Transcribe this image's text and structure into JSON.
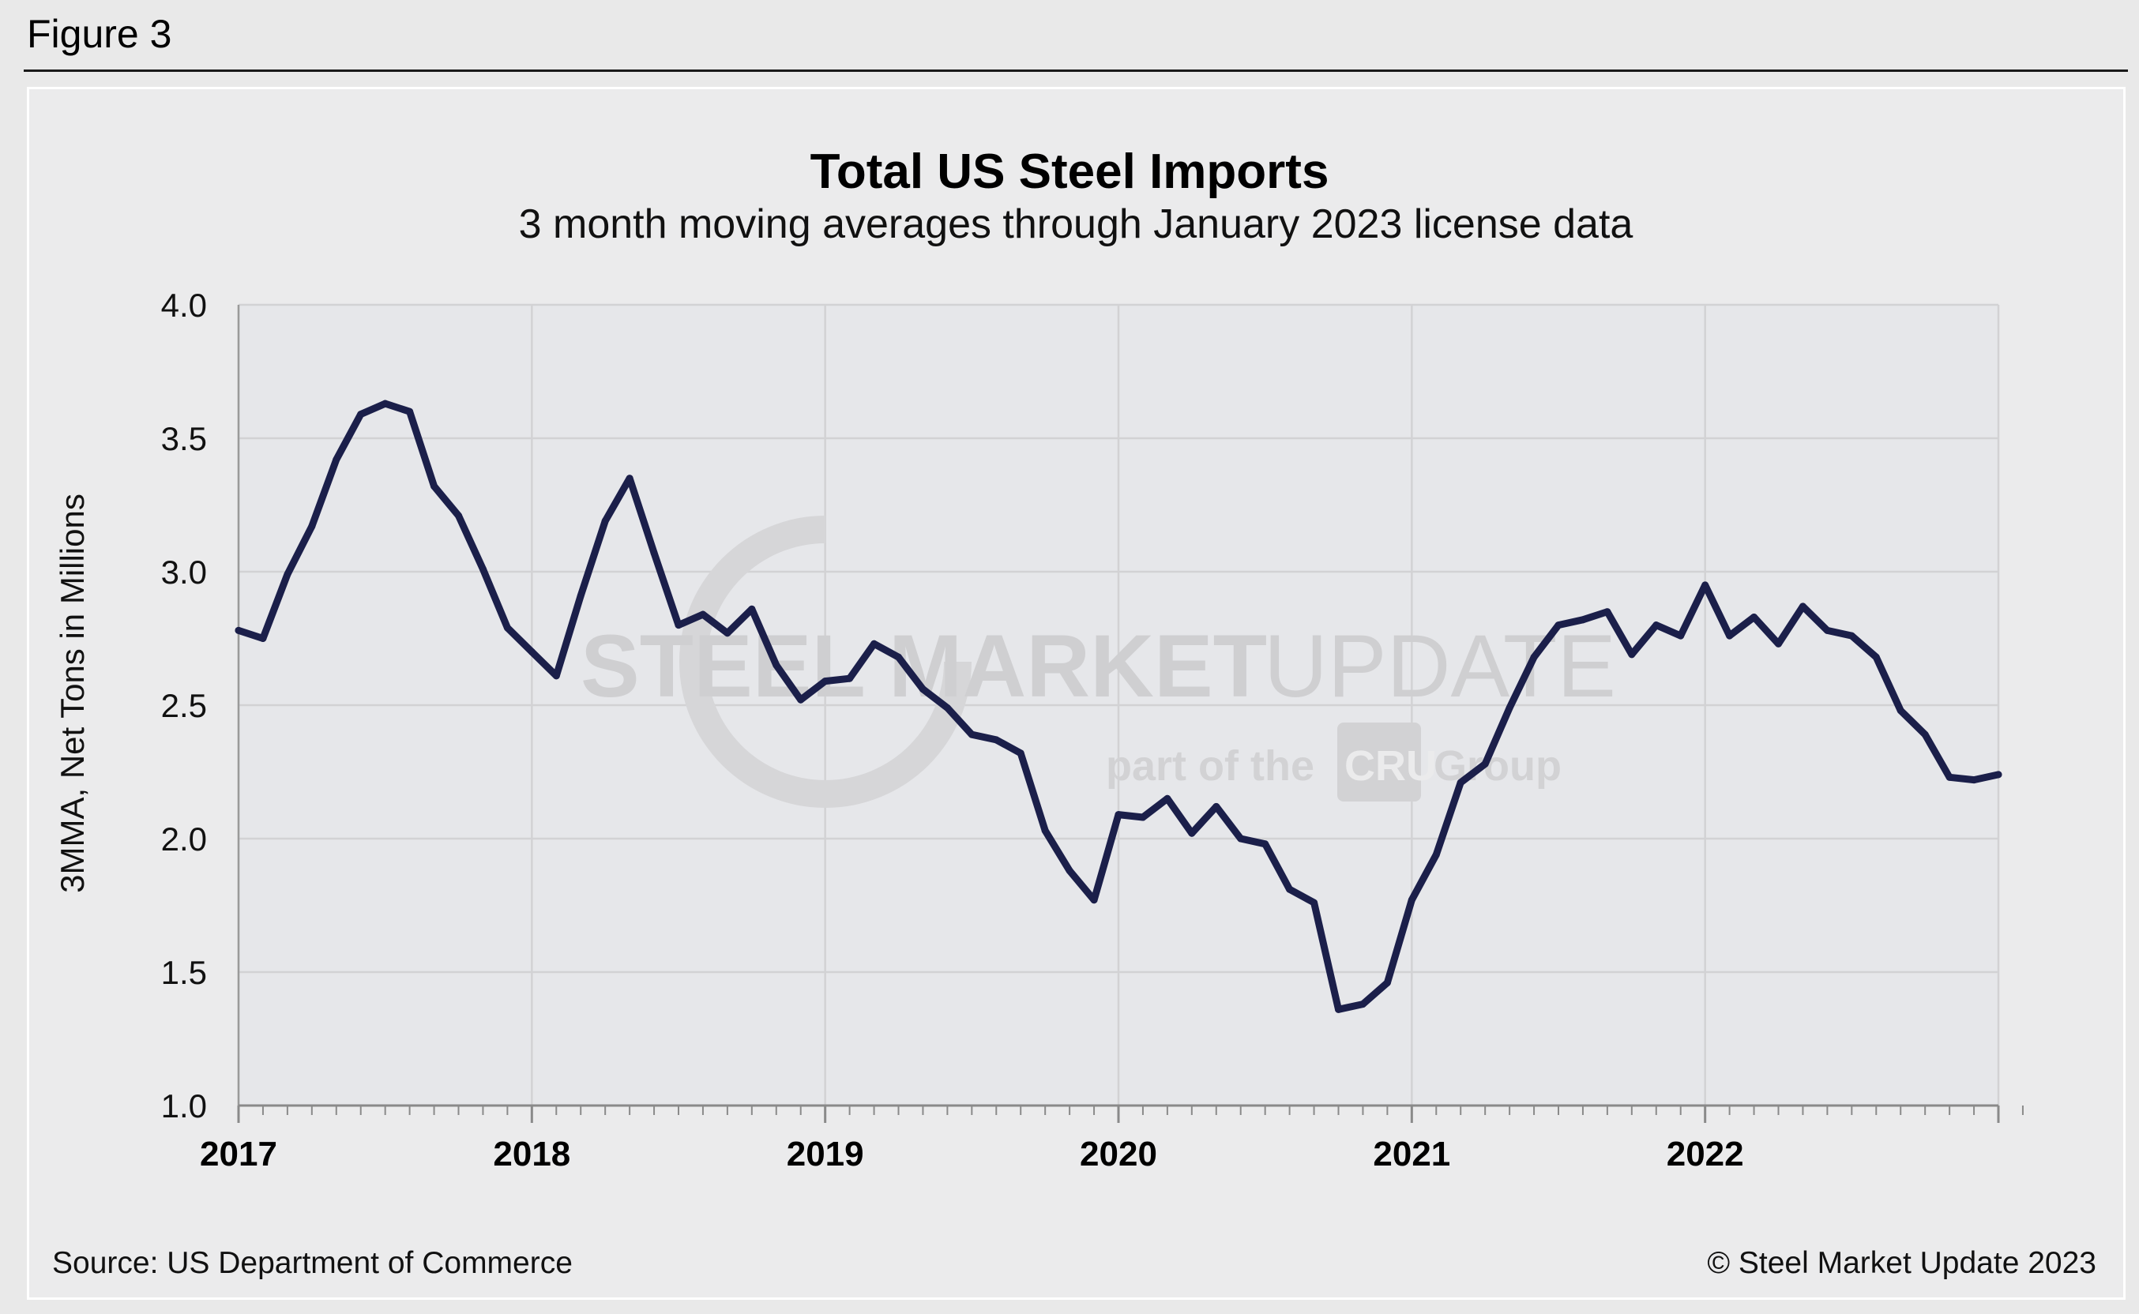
{
  "figure_label": "Figure 3",
  "footer": {
    "source": "Source: US Department of Commerce",
    "copyright": "© Steel Market Update 2023"
  },
  "watermark": {
    "brand_bold": "STEEL MARKET",
    "brand_light": "UPDATE",
    "tagline_pre": "part of the",
    "logo": "CRU",
    "tagline_post": "Group"
  },
  "colors": {
    "line": "#1b1f4a",
    "plot_background": "#e6e7ea",
    "grid": "#d2d2d4"
  },
  "chart_data": {
    "type": "line",
    "title": "Total US Steel Imports",
    "subtitle": "3 month moving averages through January 2023 license data",
    "xlabel": "",
    "ylabel": "3MMA, Net Tons in Millions",
    "ylim": [
      1.0,
      4.0
    ],
    "yticks": [
      "1.0",
      "1.5",
      "2.0",
      "2.5",
      "3.0",
      "3.5",
      "4.0"
    ],
    "xticks": [
      "2017",
      "2018",
      "2019",
      "2020",
      "2021",
      "2022"
    ],
    "x_start": 2017.0,
    "x_end": 2023.0,
    "grid": true,
    "legend": "none",
    "series": [
      {
        "name": "Total US Steel Imports (3MMA)",
        "values": [
          2.78,
          2.75,
          2.99,
          3.17,
          3.42,
          3.59,
          3.63,
          3.6,
          3.32,
          3.21,
          3.01,
          2.79,
          2.7,
          2.61,
          2.91,
          3.19,
          3.35,
          3.07,
          2.8,
          2.84,
          2.77,
          2.86,
          2.65,
          2.52,
          2.59,
          2.6,
          2.73,
          2.68,
          2.56,
          2.49,
          2.39,
          2.37,
          2.32,
          2.03,
          1.88,
          1.77,
          2.09,
          2.08,
          2.15,
          2.02,
          2.12,
          2.0,
          1.98,
          1.81,
          1.76,
          1.36,
          1.38,
          1.46,
          1.77,
          1.94,
          2.21,
          2.28,
          2.49,
          2.68,
          2.8,
          2.82,
          2.85,
          2.69,
          2.8,
          2.76,
          2.95,
          2.76,
          2.83,
          2.73,
          2.87,
          2.78,
          2.76,
          2.68,
          2.48,
          2.39,
          2.23,
          2.22,
          2.24
        ]
      }
    ]
  }
}
